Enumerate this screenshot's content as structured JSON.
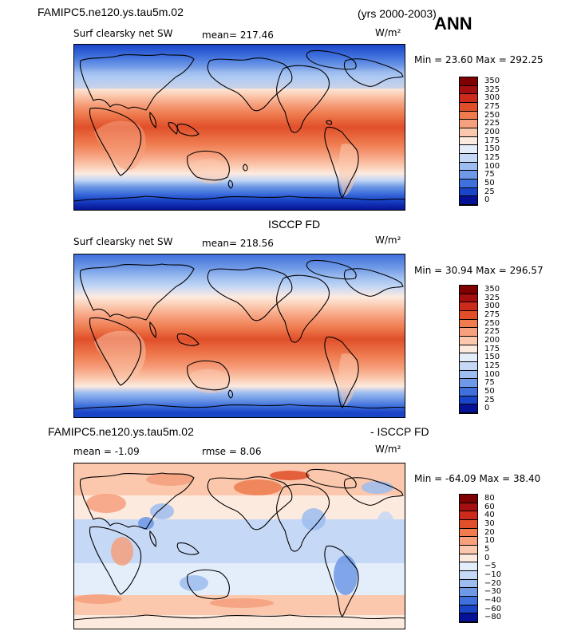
{
  "header": {
    "case": "FAMIPC5.ne120.ys.tau5m.02",
    "years": "(yrs 2000-2003)",
    "season": "ANN"
  },
  "panels": [
    {
      "id": "model",
      "title": "",
      "variable": "Surf clearsky net SW",
      "stat_text": "mean= 217.46",
      "units": "W/m²",
      "minmax": "Min =  23.60 Max = 292.25",
      "colorbar_labels": [
        "350",
        "325",
        "300",
        "275",
        "250",
        "225",
        "200",
        "175",
        "150",
        "125",
        "100",
        "75",
        "50",
        "25",
        "0"
      ]
    },
    {
      "id": "obs",
      "title": "ISCCP FD",
      "variable": "Surf clearsky net SW",
      "stat_text": "mean= 218.56",
      "units": "W/m²",
      "minmax": "Min =  30.94 Max = 296.57",
      "colorbar_labels": [
        "350",
        "325",
        "300",
        "275",
        "250",
        "225",
        "200",
        "175",
        "150",
        "125",
        "100",
        "75",
        "50",
        "25",
        "0"
      ]
    },
    {
      "id": "diff",
      "title_left": "FAMIPC5.ne120.ys.tau5m.02",
      "title_right": "- ISCCP FD",
      "stat_text": "mean =  -1.09",
      "rmse_text": "rmse =   8.06",
      "units": "W/m²",
      "minmax": "Min = -64.09 Max =  38.40",
      "colorbar_labels": [
        "80",
        "60",
        "40",
        "30",
        "20",
        "10",
        "5",
        "0",
        "−5",
        "−10",
        "−20",
        "−30",
        "−40",
        "−60",
        "−80"
      ]
    }
  ],
  "colors": {
    "abs_scale": [
      "#7f0000",
      "#a50f0f",
      "#cc2a1a",
      "#e04f2a",
      "#ef7b4f",
      "#f6a07e",
      "#fbc8ad",
      "#fdeadf",
      "#e4eefb",
      "#c5d8f5",
      "#9dbdf0",
      "#6f99e6",
      "#3f70dc",
      "#1a45c9",
      "#061296"
    ],
    "diff_scale": [
      "#7f0000",
      "#a50f0f",
      "#cc2a1a",
      "#e04f2a",
      "#ef7b4f",
      "#f6a07e",
      "#fbc8ad",
      "#fdeadf",
      "#e4eefb",
      "#c5d8f5",
      "#9dbdf0",
      "#6f99e6",
      "#3f70dc",
      "#1a45c9",
      "#061296"
    ]
  },
  "chart_data": [
    {
      "type": "heatmap",
      "title": "Surf clearsky net SW",
      "units": "W/m²",
      "mean": 217.46,
      "min": 23.6,
      "max": 292.25,
      "colorbar_levels": [
        0,
        25,
        50,
        75,
        100,
        125,
        150,
        175,
        200,
        225,
        250,
        275,
        300,
        325,
        350
      ]
    },
    {
      "type": "heatmap",
      "title": "Surf clearsky net SW",
      "units": "W/m²",
      "mean": 218.56,
      "min": 30.94,
      "max": 296.57,
      "colorbar_levels": [
        0,
        25,
        50,
        75,
        100,
        125,
        150,
        175,
        200,
        225,
        250,
        275,
        300,
        325,
        350
      ]
    },
    {
      "type": "heatmap",
      "units": "W/m²",
      "mean": -1.09,
      "rmse": 8.06,
      "min": -64.09,
      "max": 38.4,
      "colorbar_levels": [
        -80,
        -60,
        -40,
        -30,
        -20,
        -10,
        -5,
        0,
        5,
        10,
        20,
        30,
        40,
        60,
        80
      ]
    }
  ]
}
